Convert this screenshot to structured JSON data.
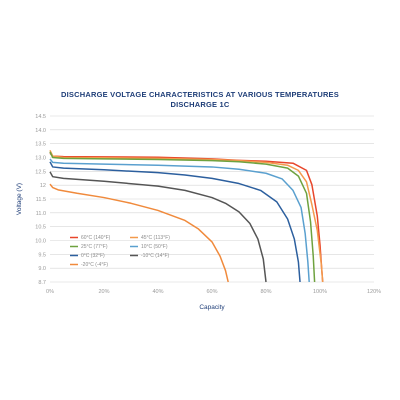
{
  "chart_data": {
    "type": "line",
    "title": "DISCHARGE VOLTAGE CHARACTERISTICS AT VARIOUS TEMPERATURES",
    "subtitle": "DISCHARGE 1C",
    "xlabel": "Capacity",
    "ylabel": "Voltage (V)",
    "xlim": [
      0,
      120
    ],
    "ylim": [
      8.7,
      14.5
    ],
    "x_ticks": [
      "0%",
      "20%",
      "40%",
      "60%",
      "80%",
      "100%",
      "120%"
    ],
    "y_ticks": [
      "14.5",
      "14.0",
      "13.5",
      "13.0",
      "12.5",
      "12",
      "11.5",
      "11.0",
      "10.5",
      "10.0",
      "9.5",
      "9.0",
      "8.7"
    ],
    "grid": true,
    "legend_position": "lower-left",
    "series": [
      {
        "name": "60°C (140°F)",
        "color": "#e8462b",
        "points": [
          [
            0,
            13.2
          ],
          [
            1,
            13.1
          ],
          [
            5,
            13.08
          ],
          [
            20,
            13.07
          ],
          [
            40,
            13.06
          ],
          [
            60,
            13.0
          ],
          [
            70,
            12.95
          ],
          [
            80,
            12.92
          ],
          [
            90,
            12.85
          ],
          [
            95,
            12.6
          ],
          [
            97,
            12.1
          ],
          [
            99,
            11.0
          ],
          [
            100,
            10.0
          ],
          [
            100.6,
            9.2
          ],
          [
            101,
            8.7
          ]
        ]
      },
      {
        "name": "45°C (113°F)",
        "color": "#f39a4c",
        "points": [
          [
            0,
            13.3
          ],
          [
            1,
            13.1
          ],
          [
            5,
            13.05
          ],
          [
            20,
            13.04
          ],
          [
            40,
            13.02
          ],
          [
            60,
            12.98
          ],
          [
            70,
            12.94
          ],
          [
            80,
            12.88
          ],
          [
            88,
            12.78
          ],
          [
            92,
            12.6
          ],
          [
            95,
            12.2
          ],
          [
            97,
            11.4
          ],
          [
            99,
            10.5
          ],
          [
            100.5,
            9.3
          ],
          [
            101,
            8.7
          ]
        ]
      },
      {
        "name": "25°C (77°F)",
        "color": "#6ea23f",
        "points": [
          [
            0,
            13.25
          ],
          [
            1,
            13.05
          ],
          [
            5,
            13.02
          ],
          [
            20,
            13.0
          ],
          [
            40,
            12.98
          ],
          [
            60,
            12.94
          ],
          [
            70,
            12.9
          ],
          [
            80,
            12.82
          ],
          [
            88,
            12.68
          ],
          [
            92,
            12.4
          ],
          [
            95,
            11.8
          ],
          [
            96.5,
            10.8
          ],
          [
            97.5,
            9.6
          ],
          [
            98,
            8.7
          ]
        ]
      },
      {
        "name": "10°C (50°F)",
        "color": "#5aa0cf",
        "points": [
          [
            0,
            13.0
          ],
          [
            1,
            12.88
          ],
          [
            5,
            12.85
          ],
          [
            20,
            12.82
          ],
          [
            40,
            12.78
          ],
          [
            60,
            12.72
          ],
          [
            70,
            12.64
          ],
          [
            80,
            12.5
          ],
          [
            86,
            12.3
          ],
          [
            90,
            11.9
          ],
          [
            93,
            11.3
          ],
          [
            94.5,
            10.4
          ],
          [
            95.5,
            9.4
          ],
          [
            96,
            8.7
          ]
        ]
      },
      {
        "name": "0°C (32°F)",
        "color": "#2c5f9e",
        "points": [
          [
            0,
            12.9
          ],
          [
            1,
            12.72
          ],
          [
            5,
            12.68
          ],
          [
            20,
            12.62
          ],
          [
            40,
            12.52
          ],
          [
            50,
            12.44
          ],
          [
            60,
            12.32
          ],
          [
            70,
            12.14
          ],
          [
            78,
            11.9
          ],
          [
            84,
            11.5
          ],
          [
            88,
            10.9
          ],
          [
            90.5,
            10.2
          ],
          [
            92,
            9.4
          ],
          [
            92.6,
            8.7
          ]
        ]
      },
      {
        "name": "-10°C (14°F)",
        "color": "#555555",
        "points": [
          [
            0,
            12.55
          ],
          [
            1,
            12.38
          ],
          [
            5,
            12.32
          ],
          [
            20,
            12.22
          ],
          [
            40,
            12.05
          ],
          [
            50,
            11.9
          ],
          [
            60,
            11.65
          ],
          [
            65,
            11.45
          ],
          [
            70,
            11.15
          ],
          [
            74,
            10.75
          ],
          [
            77,
            10.2
          ],
          [
            79,
            9.5
          ],
          [
            80,
            8.7
          ]
        ]
      },
      {
        "name": "-20°C (-4°F)",
        "color": "#f08a3c",
        "points": [
          [
            0,
            12.12
          ],
          [
            1,
            12.0
          ],
          [
            3,
            11.92
          ],
          [
            10,
            11.8
          ],
          [
            20,
            11.65
          ],
          [
            30,
            11.45
          ],
          [
            40,
            11.2
          ],
          [
            50,
            10.85
          ],
          [
            55,
            10.55
          ],
          [
            60,
            10.1
          ],
          [
            63,
            9.6
          ],
          [
            65,
            9.1
          ],
          [
            66,
            8.7
          ]
        ]
      }
    ]
  }
}
